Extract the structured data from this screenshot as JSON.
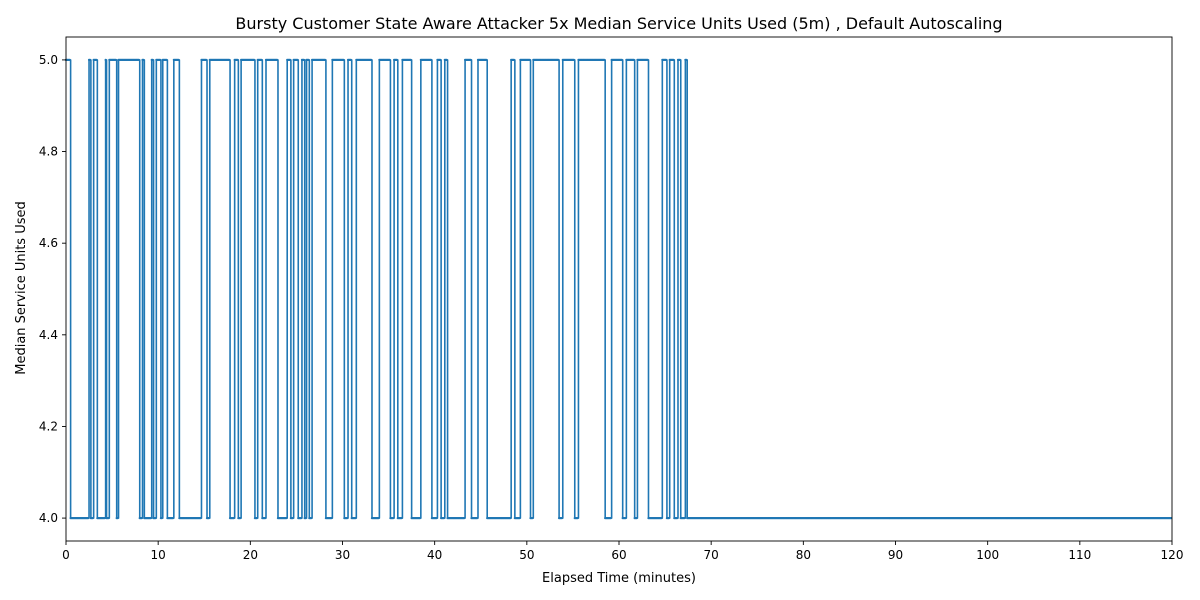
{
  "chart_data": {
    "type": "line",
    "title": "Bursty Customer State Aware Attacker 5x Median Service Units Used (5m) , Default Autoscaling",
    "xlabel": "Elapsed Time (minutes)",
    "ylabel": "Median Service Units Used",
    "xlim": [
      0,
      120
    ],
    "ylim": [
      3.95,
      5.05
    ],
    "x_ticks": [
      0,
      10,
      20,
      30,
      40,
      50,
      60,
      70,
      80,
      90,
      100,
      110,
      120
    ],
    "y_ticks": [
      4.0,
      4.2,
      4.4,
      4.6,
      4.8,
      5.0
    ],
    "x_tick_labels": [
      "0",
      "10",
      "20",
      "30",
      "40",
      "50",
      "60",
      "70",
      "80",
      "90",
      "100",
      "110",
      "120"
    ],
    "y_tick_labels": [
      "4.0",
      "4.2",
      "4.4",
      "4.6",
      "4.8",
      "5.0"
    ],
    "grid": false,
    "legend": "none",
    "series": [
      {
        "color": "#1f77b4",
        "marker_interval": 0.1,
        "segments": [
          [
            0.0,
            0.5,
            5.0
          ],
          [
            0.5,
            2.5,
            4.0
          ],
          [
            2.5,
            2.7,
            5.0
          ],
          [
            2.7,
            3.0,
            4.0
          ],
          [
            3.0,
            3.4,
            5.0
          ],
          [
            3.4,
            4.3,
            4.0
          ],
          [
            4.3,
            4.4,
            5.0
          ],
          [
            4.4,
            4.7,
            4.0
          ],
          [
            4.7,
            5.5,
            5.0
          ],
          [
            5.5,
            5.7,
            4.0
          ],
          [
            5.7,
            8.0,
            5.0
          ],
          [
            8.0,
            8.3,
            4.0
          ],
          [
            8.3,
            8.5,
            5.0
          ],
          [
            8.5,
            9.3,
            4.0
          ],
          [
            9.3,
            9.5,
            5.0
          ],
          [
            9.5,
            9.8,
            4.0
          ],
          [
            9.8,
            10.3,
            5.0
          ],
          [
            10.3,
            10.5,
            4.0
          ],
          [
            10.5,
            11.0,
            5.0
          ],
          [
            11.0,
            11.7,
            4.0
          ],
          [
            11.7,
            12.3,
            5.0
          ],
          [
            12.3,
            14.7,
            4.0
          ],
          [
            14.7,
            15.3,
            5.0
          ],
          [
            15.3,
            15.6,
            4.0
          ],
          [
            15.6,
            17.8,
            5.0
          ],
          [
            17.8,
            18.3,
            4.0
          ],
          [
            18.3,
            18.7,
            5.0
          ],
          [
            18.7,
            19.0,
            4.0
          ],
          [
            19.0,
            20.5,
            5.0
          ],
          [
            20.5,
            20.8,
            4.0
          ],
          [
            20.8,
            21.3,
            5.0
          ],
          [
            21.3,
            21.7,
            4.0
          ],
          [
            21.7,
            23.0,
            5.0
          ],
          [
            23.0,
            24.0,
            4.0
          ],
          [
            24.0,
            24.4,
            5.0
          ],
          [
            24.4,
            24.7,
            4.0
          ],
          [
            24.7,
            25.2,
            5.0
          ],
          [
            25.2,
            25.6,
            4.0
          ],
          [
            25.6,
            25.9,
            5.0
          ],
          [
            25.9,
            26.1,
            4.0
          ],
          [
            26.1,
            26.4,
            5.0
          ],
          [
            26.4,
            26.7,
            4.0
          ],
          [
            26.7,
            28.2,
            5.0
          ],
          [
            28.2,
            28.9,
            4.0
          ],
          [
            28.9,
            30.2,
            5.0
          ],
          [
            30.2,
            30.6,
            4.0
          ],
          [
            30.6,
            31.0,
            5.0
          ],
          [
            31.0,
            31.5,
            4.0
          ],
          [
            31.5,
            33.2,
            5.0
          ],
          [
            33.2,
            34.0,
            4.0
          ],
          [
            34.0,
            35.2,
            5.0
          ],
          [
            35.2,
            35.6,
            4.0
          ],
          [
            35.6,
            36.0,
            5.0
          ],
          [
            36.0,
            36.5,
            4.0
          ],
          [
            36.5,
            37.5,
            5.0
          ],
          [
            37.5,
            38.5,
            4.0
          ],
          [
            38.5,
            39.7,
            5.0
          ],
          [
            39.7,
            40.3,
            4.0
          ],
          [
            40.3,
            40.7,
            5.0
          ],
          [
            40.7,
            41.1,
            4.0
          ],
          [
            41.1,
            41.4,
            5.0
          ],
          [
            41.4,
            43.3,
            4.0
          ],
          [
            43.3,
            44.0,
            5.0
          ],
          [
            44.0,
            44.7,
            4.0
          ],
          [
            44.7,
            45.7,
            5.0
          ],
          [
            45.7,
            48.3,
            4.0
          ],
          [
            48.3,
            48.7,
            5.0
          ],
          [
            48.7,
            49.3,
            4.0
          ],
          [
            49.3,
            50.4,
            5.0
          ],
          [
            50.4,
            50.7,
            4.0
          ],
          [
            50.7,
            53.5,
            5.0
          ],
          [
            53.5,
            53.9,
            4.0
          ],
          [
            53.9,
            55.2,
            5.0
          ],
          [
            55.2,
            55.6,
            4.0
          ],
          [
            55.6,
            58.5,
            5.0
          ],
          [
            58.5,
            59.2,
            4.0
          ],
          [
            59.2,
            60.4,
            5.0
          ],
          [
            60.4,
            60.8,
            4.0
          ],
          [
            60.8,
            61.7,
            5.0
          ],
          [
            61.7,
            62.0,
            4.0
          ],
          [
            62.0,
            63.2,
            5.0
          ],
          [
            63.2,
            64.7,
            4.0
          ],
          [
            64.7,
            65.2,
            5.0
          ],
          [
            65.2,
            65.5,
            4.0
          ],
          [
            65.5,
            66.0,
            5.0
          ],
          [
            66.0,
            66.4,
            4.0
          ],
          [
            66.4,
            66.7,
            5.0
          ],
          [
            66.7,
            67.2,
            4.0
          ],
          [
            67.2,
            67.4,
            5.0
          ],
          [
            67.4,
            120.0,
            4.0
          ]
        ]
      }
    ]
  }
}
